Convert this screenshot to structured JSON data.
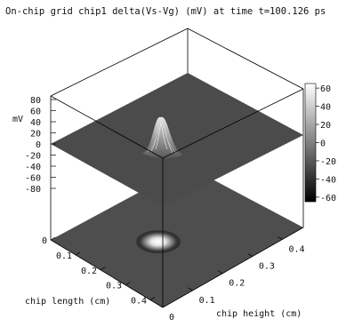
{
  "chart_data": {
    "type": "surface",
    "title": "On-chip grid chip1 delta(Vs-Vg) (mV) at time t=100.126 ps",
    "zlabel": "mV",
    "xlabel": "chip length (cm)",
    "ylabel": "chip height (cm)",
    "zlim": [
      -80,
      80
    ],
    "z_ticks": [
      80,
      60,
      40,
      20,
      0,
      -20,
      -40,
      -60,
      -80
    ],
    "x_ticks": [
      "0",
      "0.1",
      "0.2",
      "0.3",
      "0.4"
    ],
    "y_ticks": [
      "0",
      "0.1",
      "0.2",
      "0.3",
      "0.4"
    ],
    "colorbar_ticks": [
      60,
      40,
      20,
      0,
      -20,
      -40,
      -60
    ],
    "surface": {
      "baseline_mv": 0,
      "peak_mv": 45,
      "peak_location_cm": {
        "length": 0.18,
        "height": 0.1
      }
    },
    "colormap": [
      "#000000",
      "#ffffff"
    ],
    "grid": false,
    "legend": "colorbar-right"
  }
}
